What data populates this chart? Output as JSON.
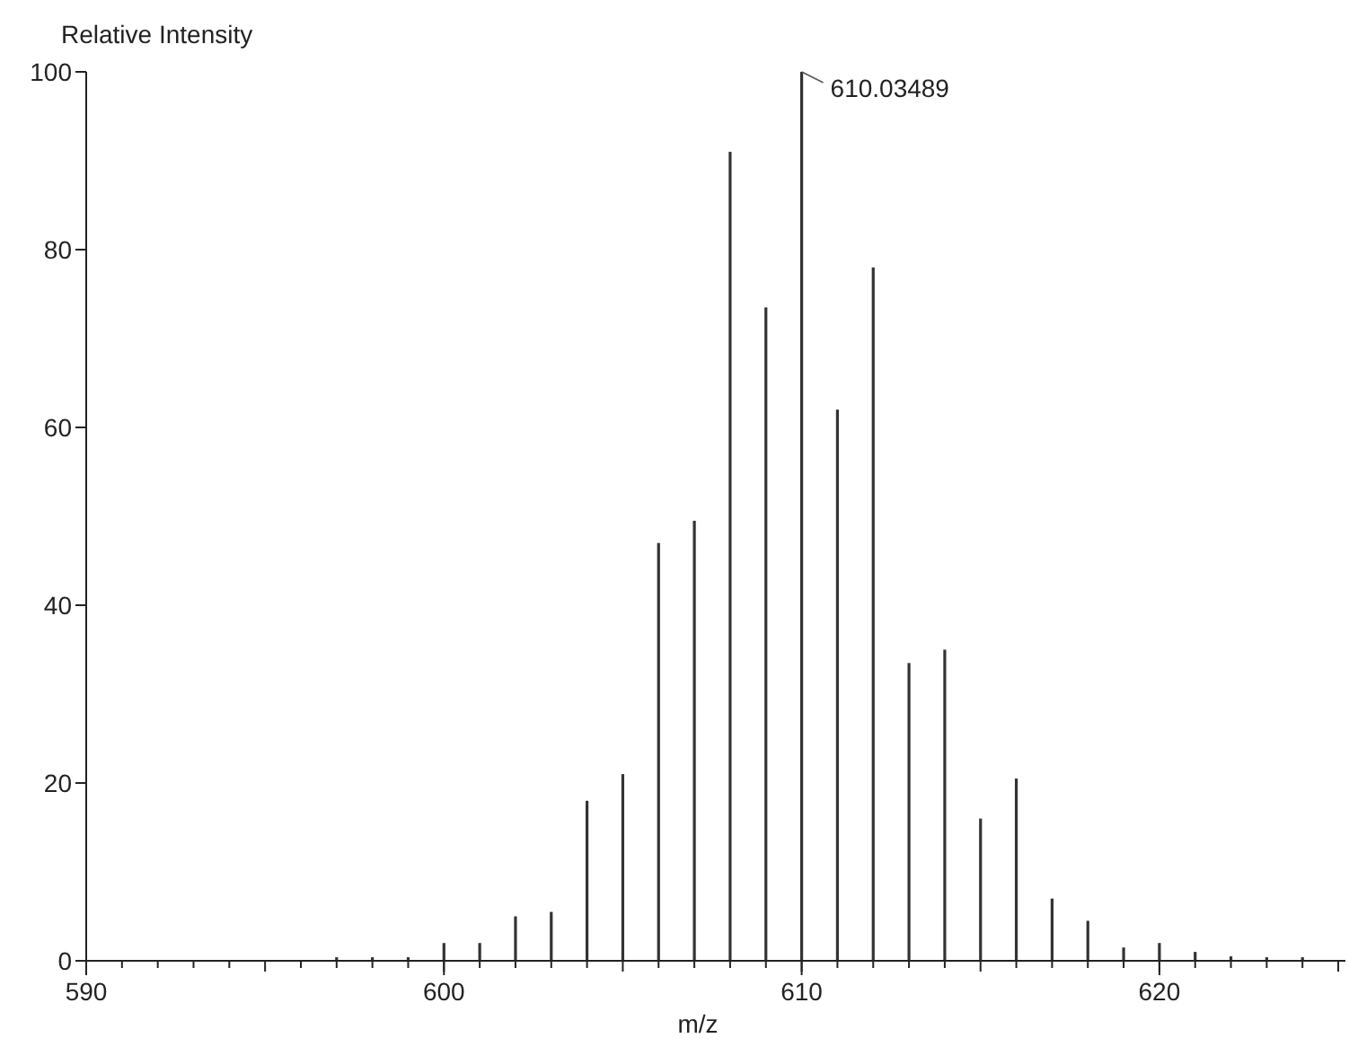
{
  "chart_data": {
    "type": "bar",
    "xlabel": "m/z",
    "ylabel": "Relative Intensity",
    "x": [
      597,
      598,
      599,
      600,
      601,
      602,
      603,
      604,
      605,
      606,
      607,
      608,
      609,
      610,
      611,
      612,
      613,
      614,
      615,
      616,
      617,
      618,
      619,
      620,
      621,
      622,
      623,
      624
    ],
    "values": [
      0.4,
      0.4,
      0.4,
      2,
      2,
      5,
      5.5,
      18,
      21,
      47,
      49.5,
      91,
      73.5,
      100,
      62,
      78,
      33.5,
      35,
      16,
      20.5,
      7,
      4.5,
      1.5,
      2,
      1,
      0.5,
      0.4,
      0.4
    ],
    "color": "#333333",
    "xlim": [
      590,
      625.2
    ],
    "xticks": [
      590,
      600,
      610,
      620
    ],
    "ylim": [
      0,
      100
    ],
    "yticks": [
      0,
      20,
      40,
      60,
      80,
      100
    ],
    "annotations": [
      {
        "text": "610.03489",
        "x": 610,
        "y": 100
      }
    ]
  }
}
